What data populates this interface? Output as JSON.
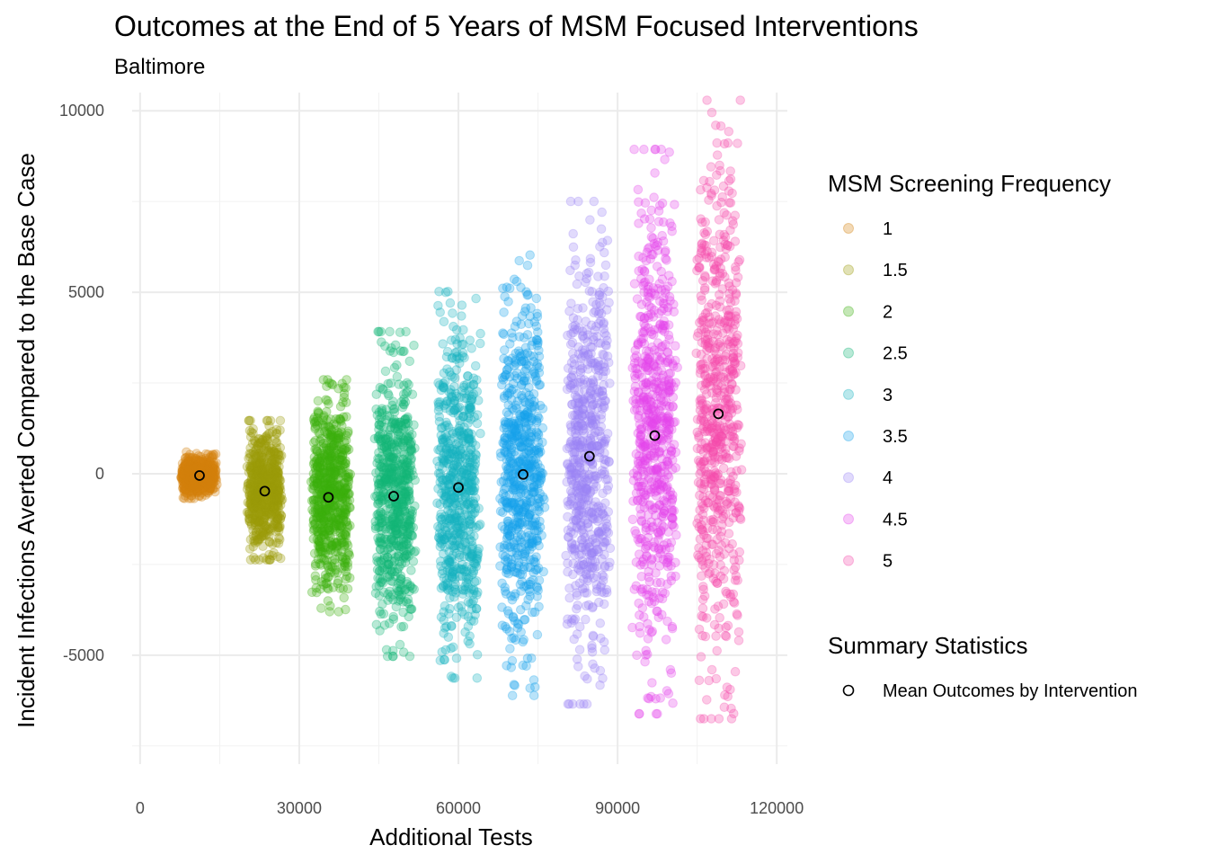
{
  "chart_data": {
    "type": "scatter",
    "title": "Outcomes at the End of 5 Years of MSM Focused Interventions",
    "subtitle": "Baltimore",
    "xlabel": "Additional Tests",
    "ylabel": "Incident Infections Averted Compared to the Base Case",
    "xlim": [
      -1500,
      122000
    ],
    "ylim": [
      -8000,
      10500
    ],
    "x_ticks": [
      0,
      30000,
      60000,
      90000,
      120000
    ],
    "x_tick_labels": [
      "0",
      "30000",
      "60000",
      "90000",
      "120000"
    ],
    "y_ticks": [
      -5000,
      0,
      5000,
      10000
    ],
    "y_tick_labels": [
      "-5000",
      "0",
      "5000",
      "10000"
    ],
    "grid": true,
    "legend": {
      "title": "MSM Screening Frequency",
      "placement": "right",
      "entries": [
        "1",
        "1.5",
        "2",
        "2.5",
        "3",
        "3.5",
        "4",
        "4.5",
        "5"
      ]
    },
    "summary_legend": {
      "title": "Summary Statistics",
      "entry": "Mean Outcomes by Intervention"
    },
    "series": [
      {
        "name": "1",
        "color": "#D4800D",
        "x_center": 11000,
        "x_spread": 3500,
        "y_spread": 600,
        "mean": {
          "x": 11200,
          "y": -50
        }
      },
      {
        "name": "1.5",
        "color": "#9A9A0B",
        "x_center": 23500,
        "x_spread": 3500,
        "y_spread": 1800,
        "mean": {
          "x": 23500,
          "y": -480
        }
      },
      {
        "name": "2",
        "color": "#3AAF0D",
        "x_center": 36000,
        "x_spread": 3800,
        "y_spread": 3000,
        "mean": {
          "x": 35500,
          "y": -650
        }
      },
      {
        "name": "2.5",
        "color": "#15B577",
        "x_center": 48000,
        "x_spread": 4000,
        "y_spread": 4200,
        "mean": {
          "x": 47800,
          "y": -620
        }
      },
      {
        "name": "3",
        "color": "#17B3BF",
        "x_center": 60000,
        "x_spread": 4200,
        "y_spread": 5000,
        "mean": {
          "x": 60000,
          "y": -380
        }
      },
      {
        "name": "3.5",
        "color": "#17A2EC",
        "x_center": 72000,
        "x_spread": 4300,
        "y_spread": 5800,
        "mean": {
          "x": 72200,
          "y": -20
        }
      },
      {
        "name": "4",
        "color": "#9A86F5",
        "x_center": 84500,
        "x_spread": 4300,
        "y_spread": 6500,
        "mean": {
          "x": 84700,
          "y": 480
        }
      },
      {
        "name": "4.5",
        "color": "#E445EC",
        "x_center": 97000,
        "x_spread": 4300,
        "y_spread": 7300,
        "mean": {
          "x": 97000,
          "y": 1050
        }
      },
      {
        "name": "5",
        "color": "#F44CAD",
        "x_center": 109000,
        "x_spread": 4500,
        "y_spread": 8000,
        "mean": {
          "x": 109000,
          "y": 1650
        }
      }
    ]
  }
}
